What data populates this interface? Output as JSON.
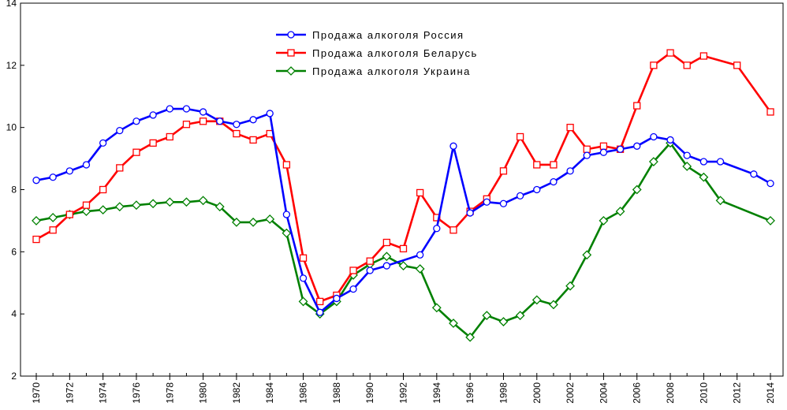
{
  "chart_data": {
    "type": "line",
    "title": "",
    "xlabel": "",
    "ylabel": "",
    "xlim": [
      1970,
      2014
    ],
    "ylim": [
      2,
      14
    ],
    "y_ticks": [
      "2",
      "4",
      "6",
      "8",
      "10",
      "12",
      "14"
    ],
    "x_ticks": [
      "1970",
      "1972",
      "1974",
      "1976",
      "1978",
      "1980",
      "1982",
      "1984",
      "1986",
      "1988",
      "1990",
      "1992",
      "1994",
      "1996",
      "1998",
      "2000",
      "2002",
      "2004",
      "2006",
      "2008",
      "2010",
      "2012",
      "2014"
    ],
    "grid": false,
    "legend_position": "top-center",
    "series": [
      {
        "name": "Продажа алкоголя Россия",
        "color": "#0000ff",
        "marker": "circle",
        "x": [
          1970,
          1971,
          1972,
          1973,
          1974,
          1975,
          1976,
          1977,
          1978,
          1979,
          1980,
          1981,
          1982,
          1983,
          1984,
          1985,
          1986,
          1987,
          1988,
          1989,
          1990,
          1991,
          1993,
          1994,
          1995,
          1996,
          1997,
          1998,
          1999,
          2000,
          2001,
          2002,
          2003,
          2004,
          2005,
          2006,
          2007,
          2008,
          2009,
          2010,
          2011,
          2013,
          2014
        ],
        "y": [
          8.3,
          8.4,
          8.6,
          8.8,
          9.5,
          9.9,
          10.2,
          10.4,
          10.6,
          10.6,
          10.5,
          10.2,
          10.1,
          10.25,
          10.45,
          7.2,
          5.15,
          4.05,
          4.5,
          4.8,
          5.4,
          5.55,
          5.9,
          6.75,
          9.4,
          7.25,
          7.6,
          7.55,
          7.8,
          8.0,
          8.25,
          8.6,
          9.1,
          9.2,
          9.3,
          9.4,
          9.7,
          9.6,
          9.1,
          8.9,
          8.9,
          8.5,
          8.2
        ]
      },
      {
        "name": "Продажа алкоголя Беларусь",
        "color": "#ff0000",
        "marker": "square",
        "x": [
          1970,
          1971,
          1972,
          1973,
          1974,
          1975,
          1976,
          1977,
          1978,
          1979,
          1980,
          1981,
          1982,
          1983,
          1984,
          1985,
          1986,
          1987,
          1988,
          1989,
          1990,
          1991,
          1992,
          1993,
          1994,
          1995,
          1996,
          1997,
          1998,
          1999,
          2000,
          2001,
          2002,
          2003,
          2004,
          2005,
          2006,
          2007,
          2008,
          2009,
          2010,
          2012,
          2014
        ],
        "y": [
          6.4,
          6.7,
          7.2,
          7.5,
          8.0,
          8.7,
          9.2,
          9.5,
          9.7,
          10.1,
          10.2,
          10.2,
          9.8,
          9.6,
          9.8,
          8.8,
          5.8,
          4.4,
          4.6,
          5.4,
          5.7,
          6.3,
          6.1,
          7.9,
          7.1,
          6.7,
          7.3,
          7.7,
          8.6,
          9.7,
          8.8,
          8.8,
          10.0,
          9.3,
          9.4,
          9.3,
          10.7,
          12.0,
          12.4,
          12.0,
          12.3,
          12.0,
          10.5
        ]
      },
      {
        "name": "Продажа алкоголя Украина",
        "color": "#008000",
        "marker": "diamond",
        "x": [
          1970,
          1971,
          1972,
          1973,
          1974,
          1975,
          1976,
          1977,
          1978,
          1979,
          1980,
          1981,
          1982,
          1983,
          1984,
          1985,
          1986,
          1987,
          1988,
          1989,
          1990,
          1991,
          1992,
          1993,
          1994,
          1995,
          1996,
          1997,
          1998,
          1999,
          2000,
          2001,
          2002,
          2003,
          2004,
          2005,
          2006,
          2007,
          2008,
          2009,
          2010,
          2011,
          2014
        ],
        "y": [
          7.0,
          7.1,
          7.2,
          7.3,
          7.35,
          7.45,
          7.5,
          7.55,
          7.6,
          7.6,
          7.65,
          7.45,
          6.95,
          6.95,
          7.05,
          6.6,
          4.4,
          4.0,
          4.4,
          5.25,
          5.6,
          5.85,
          5.55,
          5.45,
          4.2,
          3.7,
          3.25,
          3.95,
          3.75,
          3.95,
          4.45,
          4.3,
          4.9,
          5.9,
          7.0,
          7.3,
          8.0,
          8.9,
          9.5,
          8.75,
          8.4,
          7.65,
          7.0
        ]
      }
    ]
  }
}
